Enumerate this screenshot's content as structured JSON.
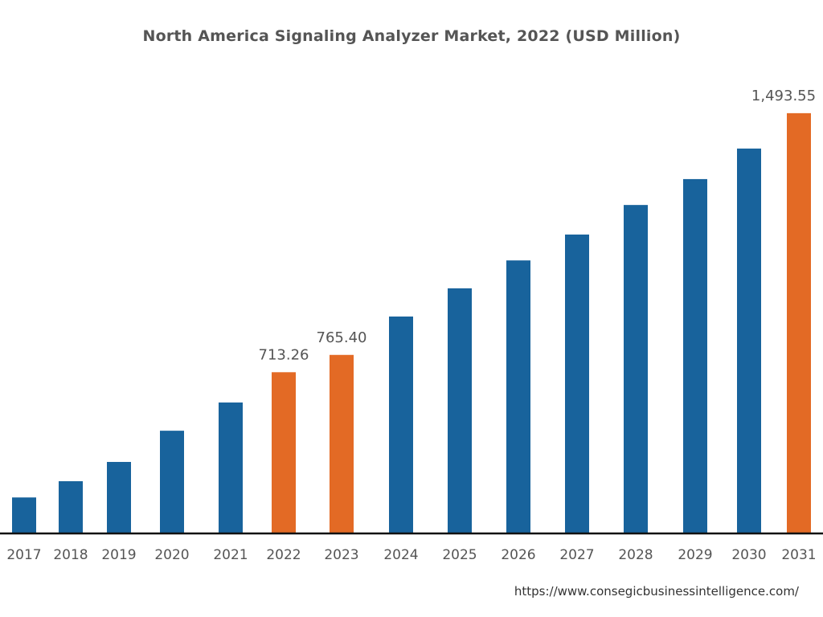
{
  "chart_data": {
    "type": "bar",
    "title": "North America Signaling Analyzer Market, 2022 (USD Million)",
    "xlabel": "",
    "ylabel": "",
    "categories": [
      "2017",
      "2018",
      "2019",
      "2020",
      "2021",
      "2022",
      "2023",
      "2024",
      "2025",
      "2026",
      "2027",
      "2028",
      "2029",
      "2030",
      "2031"
    ],
    "values": [
      336,
      385,
      443,
      537,
      622,
      713.26,
      765.4,
      881,
      966,
      1050,
      1128,
      1217,
      1295,
      1387,
      1493.55
    ],
    "data_labels": {
      "2022": "713.26",
      "2023": "765.40",
      "2031": "1,493.55"
    },
    "highlighted": [
      "2022",
      "2023",
      "2031"
    ],
    "ylim": [
      230,
      1500
    ],
    "grid": false,
    "colors": {
      "default": "#18639c",
      "highlight": "#e36a25",
      "axis": "#111111",
      "text": "#555555"
    }
  },
  "source": "https://www.consegicbusinessintelligence.com/"
}
